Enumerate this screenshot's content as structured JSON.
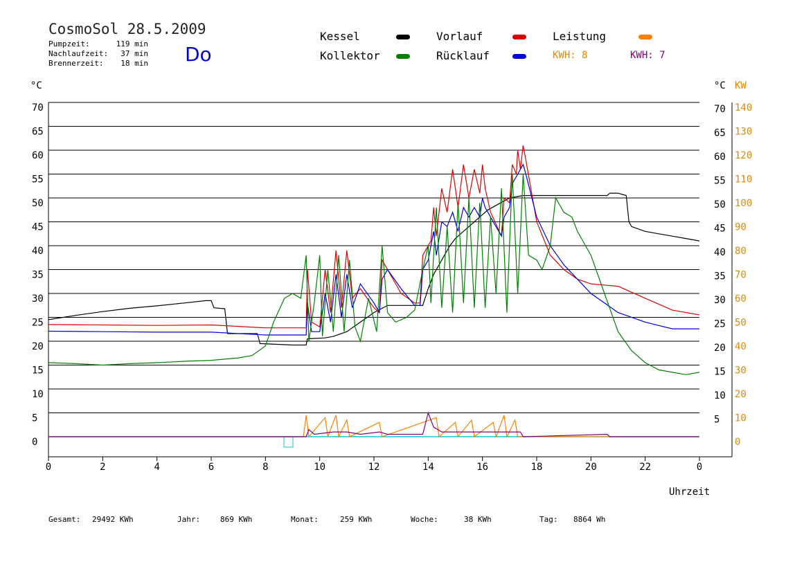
{
  "header": {
    "title": "CosmoSol 28.5.2009",
    "weekday": "Do",
    "info": [
      {
        "label": "Pumpzeit:",
        "value": "119 min"
      },
      {
        "label": "Nachlaufzeit:",
        "value": "37 min"
      },
      {
        "label": "Brennerzeit:",
        "value": "18 min"
      }
    ]
  },
  "legend": [
    {
      "name": "Kessel",
      "color": "#000000"
    },
    {
      "name": "Vorlauf",
      "color": "#dd0000"
    },
    {
      "name": "Leistung",
      "color": "#ff8000"
    },
    {
      "name": "Kollektor",
      "color": "#008000"
    },
    {
      "name": "Rücklauf",
      "color": "#0000dd"
    }
  ],
  "kwh": [
    {
      "label": "KWH: 8",
      "color": "#e08800"
    },
    {
      "label": "KWH: 7",
      "color": "#800080"
    }
  ],
  "footer": [
    {
      "label": "Gesamt:",
      "value": "29492 KWh"
    },
    {
      "label": "Jahr:",
      "value": "869 KWh"
    },
    {
      "label": "Monat:",
      "value": "259 KWh"
    },
    {
      "label": "Woche:",
      "value": "38 KWh"
    },
    {
      "label": "Tag:",
      "value": "8864 Wh"
    }
  ],
  "chart_data": {
    "type": "line",
    "xlabel": "Uhrzeit",
    "xticks": [
      "0",
      "2",
      "4",
      "6",
      "8",
      "10",
      "12",
      "14",
      "16",
      "18",
      "20",
      "22",
      "0"
    ],
    "xlim": [
      0,
      24
    ],
    "left_axis": {
      "unit": "°C",
      "ticks": [
        0,
        5,
        10,
        15,
        20,
        25,
        30,
        35,
        40,
        45,
        50,
        55,
        60,
        65,
        70
      ],
      "ylim": [
        -2,
        70
      ]
    },
    "right_axis_temp": {
      "unit": "°C",
      "ticks": [
        5,
        10,
        15,
        20,
        25,
        30,
        35,
        40,
        45,
        50,
        55,
        60,
        65,
        70
      ]
    },
    "right_axis_power": {
      "unit": "KW",
      "color": "#e08800",
      "ticks": [
        0,
        10,
        20,
        30,
        40,
        50,
        60,
        70,
        80,
        90,
        100,
        110,
        120,
        130,
        140
      ]
    },
    "grid": true,
    "series": [
      {
        "name": "Kessel",
        "color": "#000000",
        "points": [
          [
            0,
            24.5
          ],
          [
            1,
            25.4
          ],
          [
            2,
            26.2
          ],
          [
            3,
            26.9
          ],
          [
            4,
            27.4
          ],
          [
            5,
            28
          ],
          [
            5.8,
            28.5
          ],
          [
            6,
            28.5
          ],
          [
            6.1,
            27
          ],
          [
            6.5,
            26.8
          ],
          [
            6.6,
            21.6
          ],
          [
            7.7,
            21.6
          ],
          [
            7.8,
            19.5
          ],
          [
            9,
            19.2
          ],
          [
            9.5,
            19.2
          ],
          [
            9.55,
            20.5
          ],
          [
            10.2,
            20.7
          ],
          [
            10.5,
            21
          ],
          [
            11,
            22
          ],
          [
            11.5,
            24
          ],
          [
            12,
            26
          ],
          [
            12.5,
            27.5
          ],
          [
            13.5,
            27.5
          ],
          [
            13.8,
            27.5
          ],
          [
            14,
            31
          ],
          [
            14.2,
            34
          ],
          [
            14.5,
            37
          ],
          [
            14.8,
            40
          ],
          [
            15,
            41.5
          ],
          [
            15.5,
            44
          ],
          [
            16,
            46.5
          ],
          [
            16.2,
            47.5
          ],
          [
            17,
            50
          ],
          [
            17.5,
            50.5
          ],
          [
            18,
            50.5
          ],
          [
            19,
            50.5
          ],
          [
            20,
            50.5
          ],
          [
            20.6,
            50.5
          ],
          [
            20.7,
            51
          ],
          [
            21,
            51
          ],
          [
            21.3,
            50.5
          ],
          [
            21.4,
            45
          ],
          [
            21.5,
            44
          ],
          [
            22,
            43
          ],
          [
            22.5,
            42.5
          ],
          [
            23,
            42
          ],
          [
            23.5,
            41.5
          ],
          [
            24,
            41
          ]
        ]
      },
      {
        "name": "Vorlauf",
        "color": "#dd0000",
        "points": [
          [
            0,
            23.5
          ],
          [
            2,
            23.4
          ],
          [
            4,
            23.3
          ],
          [
            6,
            23.4
          ],
          [
            8,
            22.8
          ],
          [
            9,
            22.8
          ],
          [
            9.5,
            22.8
          ],
          [
            9.55,
            35
          ],
          [
            9.7,
            24
          ],
          [
            10,
            23
          ],
          [
            10.2,
            35
          ],
          [
            10.4,
            26
          ],
          [
            10.6,
            39
          ],
          [
            10.8,
            27
          ],
          [
            11,
            39
          ],
          [
            11.2,
            29
          ],
          [
            11.5,
            31
          ],
          [
            12,
            27
          ],
          [
            12.2,
            26
          ],
          [
            12.3,
            37
          ],
          [
            12.5,
            35
          ],
          [
            13,
            30
          ],
          [
            13.5,
            28
          ],
          [
            13.7,
            28
          ],
          [
            13.8,
            38
          ],
          [
            14,
            40
          ],
          [
            14.1,
            41
          ],
          [
            14.2,
            48
          ],
          [
            14.3,
            42
          ],
          [
            14.5,
            52
          ],
          [
            14.7,
            47
          ],
          [
            14.9,
            56
          ],
          [
            15.1,
            48
          ],
          [
            15.3,
            57
          ],
          [
            15.5,
            50
          ],
          [
            15.7,
            56
          ],
          [
            15.9,
            51
          ],
          [
            16,
            57
          ],
          [
            16.1,
            52
          ],
          [
            16.3,
            47
          ],
          [
            16.7,
            42
          ],
          [
            16.8,
            50
          ],
          [
            17,
            49
          ],
          [
            17.1,
            57
          ],
          [
            17.25,
            55
          ],
          [
            17.3,
            60
          ],
          [
            17.4,
            56
          ],
          [
            17.5,
            61
          ],
          [
            17.6,
            58
          ],
          [
            18,
            45
          ],
          [
            18.5,
            38
          ],
          [
            19,
            35
          ],
          [
            19.5,
            33
          ],
          [
            20,
            32
          ],
          [
            21,
            31.5
          ],
          [
            22,
            29
          ],
          [
            23,
            26.5
          ],
          [
            24,
            25.5
          ]
        ]
      },
      {
        "name": "Rücklauf",
        "color": "#0000dd",
        "points": [
          [
            0,
            22.1
          ],
          [
            2,
            22
          ],
          [
            4,
            21.9
          ],
          [
            6,
            21.9
          ],
          [
            8,
            21.3
          ],
          [
            9,
            21.3
          ],
          [
            9.5,
            21.3
          ],
          [
            9.55,
            28
          ],
          [
            9.7,
            22
          ],
          [
            10,
            22
          ],
          [
            10.2,
            30
          ],
          [
            10.4,
            24
          ],
          [
            10.6,
            34
          ],
          [
            10.8,
            25
          ],
          [
            11,
            34
          ],
          [
            11.2,
            27
          ],
          [
            11.5,
            32
          ],
          [
            12,
            28
          ],
          [
            12.2,
            26
          ],
          [
            12.3,
            33
          ],
          [
            12.5,
            35
          ],
          [
            13,
            31
          ],
          [
            13.5,
            27.5
          ],
          [
            13.7,
            27.5
          ],
          [
            13.8,
            35
          ],
          [
            14,
            37
          ],
          [
            14.1,
            40
          ],
          [
            14.2,
            43
          ],
          [
            14.3,
            38
          ],
          [
            14.5,
            45
          ],
          [
            14.7,
            44
          ],
          [
            14.9,
            47
          ],
          [
            15.1,
            43
          ],
          [
            15.3,
            48
          ],
          [
            15.5,
            46
          ],
          [
            15.7,
            48
          ],
          [
            15.9,
            46
          ],
          [
            16,
            50
          ],
          [
            16.1,
            48
          ],
          [
            16.3,
            46
          ],
          [
            16.7,
            42
          ],
          [
            16.8,
            46
          ],
          [
            17,
            48
          ],
          [
            17.1,
            53
          ],
          [
            17.3,
            55
          ],
          [
            17.5,
            57
          ],
          [
            17.6,
            55
          ],
          [
            18,
            46
          ],
          [
            18.5,
            40
          ],
          [
            19,
            36
          ],
          [
            19.5,
            33
          ],
          [
            20,
            30
          ],
          [
            20.5,
            28
          ],
          [
            21,
            26
          ],
          [
            22,
            24
          ],
          [
            23,
            22.6
          ],
          [
            24,
            22.6
          ]
        ]
      },
      {
        "name": "Kollektor",
        "color": "#008000",
        "points": [
          [
            0,
            15.5
          ],
          [
            1,
            15.3
          ],
          [
            2,
            15
          ],
          [
            3,
            15.3
          ],
          [
            4,
            15.5
          ],
          [
            5,
            15.8
          ],
          [
            6,
            16
          ],
          [
            7,
            16.5
          ],
          [
            7.5,
            17
          ],
          [
            8,
            19
          ],
          [
            8.3,
            24
          ],
          [
            8.7,
            29
          ],
          [
            9,
            30
          ],
          [
            9.3,
            29
          ],
          [
            9.5,
            38
          ],
          [
            9.6,
            20
          ],
          [
            9.8,
            28
          ],
          [
            10,
            38
          ],
          [
            10.1,
            21
          ],
          [
            10.3,
            35
          ],
          [
            10.5,
            22
          ],
          [
            10.7,
            38
          ],
          [
            10.9,
            22
          ],
          [
            11.1,
            37
          ],
          [
            11.3,
            23
          ],
          [
            11.5,
            20
          ],
          [
            11.8,
            29
          ],
          [
            12.1,
            22
          ],
          [
            12.3,
            40
          ],
          [
            12.5,
            26
          ],
          [
            12.8,
            24
          ],
          [
            13.2,
            25
          ],
          [
            13.5,
            26.5
          ],
          [
            13.8,
            35
          ],
          [
            14,
            40
          ],
          [
            14.1,
            28
          ],
          [
            14.3,
            48
          ],
          [
            14.5,
            27
          ],
          [
            14.7,
            44
          ],
          [
            14.9,
            26
          ],
          [
            15.1,
            49
          ],
          [
            15.3,
            28
          ],
          [
            15.5,
            50
          ],
          [
            15.7,
            27
          ],
          [
            15.9,
            49
          ],
          [
            16.1,
            27
          ],
          [
            16.3,
            46
          ],
          [
            16.5,
            30
          ],
          [
            16.7,
            52
          ],
          [
            16.9,
            26
          ],
          [
            17.1,
            55
          ],
          [
            17.3,
            30
          ],
          [
            17.5,
            55
          ],
          [
            17.7,
            38
          ],
          [
            18,
            37
          ],
          [
            18.2,
            35
          ],
          [
            18.5,
            40
          ],
          [
            18.7,
            50
          ],
          [
            19,
            47
          ],
          [
            19.3,
            46
          ],
          [
            19.5,
            43
          ],
          [
            19.8,
            40
          ],
          [
            20,
            38
          ],
          [
            20.5,
            30
          ],
          [
            21,
            22
          ],
          [
            21.5,
            18
          ],
          [
            22,
            15.5
          ],
          [
            22.5,
            14
          ],
          [
            23,
            13.5
          ],
          [
            23.5,
            13
          ],
          [
            24,
            13.5
          ]
        ]
      },
      {
        "name": "Leistung",
        "color": "#ff8000",
        "axis": "power",
        "points": [
          [
            0,
            0
          ],
          [
            9.4,
            0
          ],
          [
            9.5,
            9
          ],
          [
            9.6,
            0
          ],
          [
            10.2,
            8
          ],
          [
            10.3,
            0
          ],
          [
            10.6,
            9
          ],
          [
            10.7,
            0
          ],
          [
            11,
            7
          ],
          [
            11.1,
            0
          ],
          [
            12.2,
            6
          ],
          [
            12.3,
            0
          ],
          [
            14.3,
            8
          ],
          [
            14.4,
            0
          ],
          [
            15,
            6
          ],
          [
            15.1,
            0
          ],
          [
            15.6,
            7
          ],
          [
            15.7,
            0
          ],
          [
            16.4,
            6
          ],
          [
            16.5,
            0
          ],
          [
            16.8,
            9
          ],
          [
            16.9,
            0
          ],
          [
            17.2,
            7
          ],
          [
            17.3,
            0
          ],
          [
            24,
            0
          ]
        ]
      },
      {
        "name": "KWH 7",
        "color": "#800080",
        "axis": "power",
        "points": [
          [
            0,
            0
          ],
          [
            9.5,
            0
          ],
          [
            9.6,
            3
          ],
          [
            9.8,
            1
          ],
          [
            10.5,
            2
          ],
          [
            11,
            2
          ],
          [
            11.5,
            1
          ],
          [
            12.2,
            2
          ],
          [
            12.5,
            1
          ],
          [
            13.8,
            1
          ],
          [
            14,
            10
          ],
          [
            14.2,
            4
          ],
          [
            14.5,
            2
          ],
          [
            15,
            2
          ],
          [
            16,
            2
          ],
          [
            17,
            2
          ],
          [
            17.4,
            2
          ],
          [
            17.5,
            0
          ],
          [
            20.6,
            1
          ],
          [
            20.7,
            0
          ],
          [
            24,
            0
          ]
        ]
      }
    ]
  }
}
